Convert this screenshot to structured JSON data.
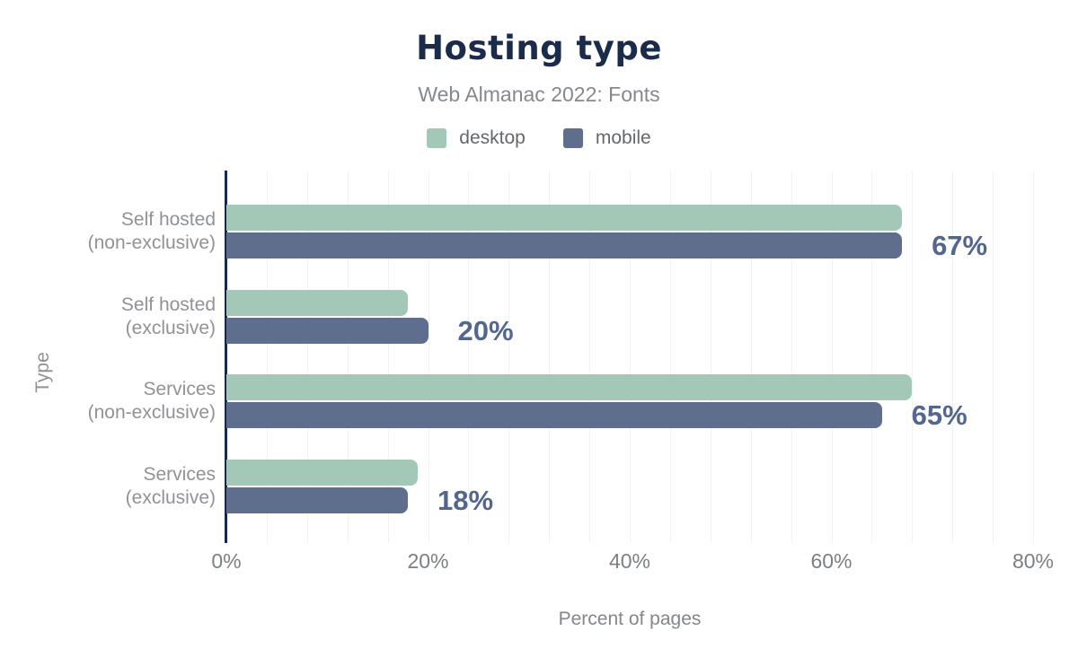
{
  "header": {
    "title": "Hosting type",
    "subtitle": "Web Almanac 2022: Fonts"
  },
  "colors": {
    "desktop": "#a4c8b8",
    "mobile": "#5f6e8c",
    "title": "#1a2b4c",
    "value_label": "#53668e",
    "axis_line": "#16294b",
    "gridline": "#f2f2f2"
  },
  "chart_data": {
    "type": "bar",
    "orientation": "horizontal",
    "title": "Hosting type",
    "subtitle": "Web Almanac 2022: Fonts",
    "xlabel": "Percent of pages",
    "ylabel": "Type",
    "xlim": [
      0,
      80
    ],
    "x_tick_labels": [
      "0%",
      "20%",
      "40%",
      "60%",
      "80%"
    ],
    "x_tick_values": [
      0,
      20,
      40,
      60,
      80
    ],
    "minor_grid_step": 4,
    "grid": true,
    "legend_position": "top",
    "categories": [
      [
        "Self hosted",
        "(non-exclusive)"
      ],
      [
        "Self hosted",
        "(exclusive)"
      ],
      [
        "Services",
        "(non-exclusive)"
      ],
      [
        "Services",
        "(exclusive)"
      ]
    ],
    "series": [
      {
        "name": "desktop",
        "color": "#a4c8b8",
        "values": [
          67,
          18,
          68,
          19
        ]
      },
      {
        "name": "mobile",
        "color": "#5f6e8c",
        "values": [
          67,
          20,
          65,
          18
        ]
      }
    ],
    "annotations": [
      "67%",
      "20%",
      "65%",
      "18%"
    ]
  }
}
